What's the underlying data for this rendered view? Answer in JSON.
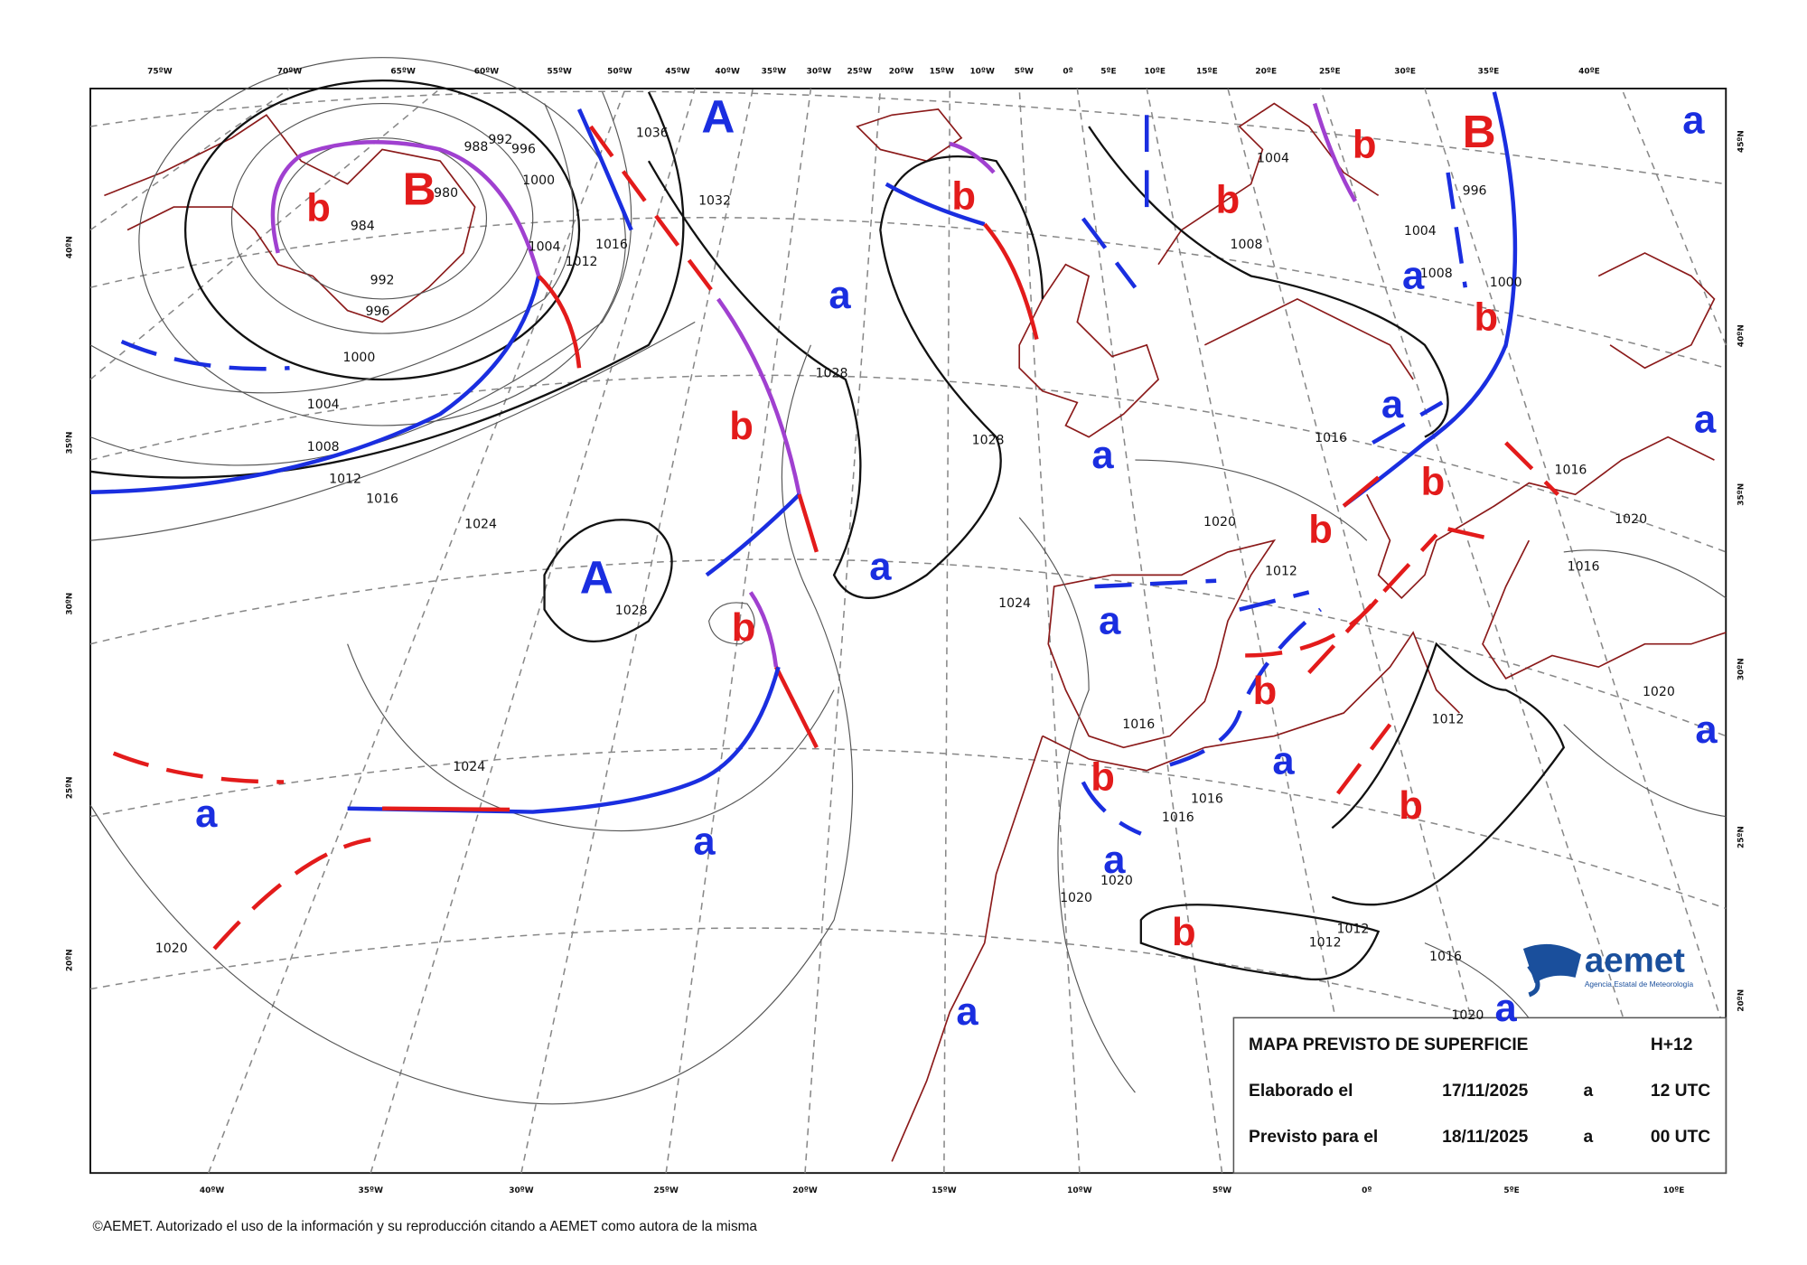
{
  "map": {
    "top_labels": [
      "75ºW",
      "70ºW",
      "65ºW",
      "60ºW",
      "55ºW",
      "50ºW",
      "45ºW",
      "40ºW",
      "35ºW",
      "30ºW",
      "25ºW",
      "20ºW",
      "15ºW",
      "10ºW",
      "5ºW",
      "0º",
      "5ºE",
      "10ºE",
      "15ºE",
      "20ºE",
      "25ºE",
      "30ºE",
      "35ºE",
      "40ºE"
    ],
    "bottom_labels": [
      "40ºW",
      "35ºW",
      "30ºW",
      "25ºW",
      "20ºW",
      "15ºW",
      "10ºW",
      "5ºW",
      "0º",
      "5ºE",
      "10ºE"
    ],
    "left_labels": [
      "40ºN",
      "35ºN",
      "30ºN",
      "25ºN",
      "20ºN"
    ],
    "right_labels": [
      "45ºN",
      "40ºN",
      "35ºN",
      "30ºN",
      "25ºN",
      "20ºN"
    ],
    "high_color": "#1a2ee0",
    "low_color": "#e31b1b",
    "highs_major": [
      "A",
      "A"
    ],
    "lows_major": [
      "B",
      "B"
    ],
    "highs_minor": [
      "a",
      "a",
      "a",
      "a",
      "a",
      "a",
      "a",
      "a",
      "a",
      "a",
      "a",
      "a",
      "a",
      "a",
      "a"
    ],
    "lows_minor": [
      "b",
      "b",
      "b",
      "b",
      "b",
      "b",
      "b",
      "b",
      "b",
      "b",
      "b",
      "b",
      "b"
    ],
    "isobar_labels": [
      "1036",
      "1032",
      "1028",
      "1028",
      "1028",
      "1024",
      "1024",
      "1024",
      "1020",
      "1020",
      "1020",
      "1020",
      "1020",
      "1020",
      "1020",
      "1016",
      "1016",
      "1016",
      "1016",
      "1016",
      "1016",
      "1016",
      "1016",
      "1016",
      "1012",
      "1012",
      "1012",
      "1012",
      "1012",
      "1012",
      "1008",
      "1008",
      "1008",
      "1004",
      "1004",
      "1004",
      "1004",
      "1000",
      "1000",
      "1000",
      "996",
      "996",
      "992",
      "992",
      "988",
      "984",
      "980",
      "996"
    ],
    "info_box": {
      "title": "MAPA PREVISTO DE SUPERFICIE",
      "run": "H+12",
      "made_label": "Elaborado el",
      "made_date": "17/11/2025",
      "made_at": "a",
      "made_time": "12 UTC",
      "valid_label": "Previsto para el",
      "valid_date": "18/11/2025",
      "valid_at": "a",
      "valid_time": "00 UTC"
    },
    "logo": {
      "name": "aemet",
      "subtitle": "Agencia Estatal de Meteorología"
    },
    "copyright": "©AEMET. Autorizado el uso de la información y su reproducción citando a AEMET como autora de la misma"
  }
}
